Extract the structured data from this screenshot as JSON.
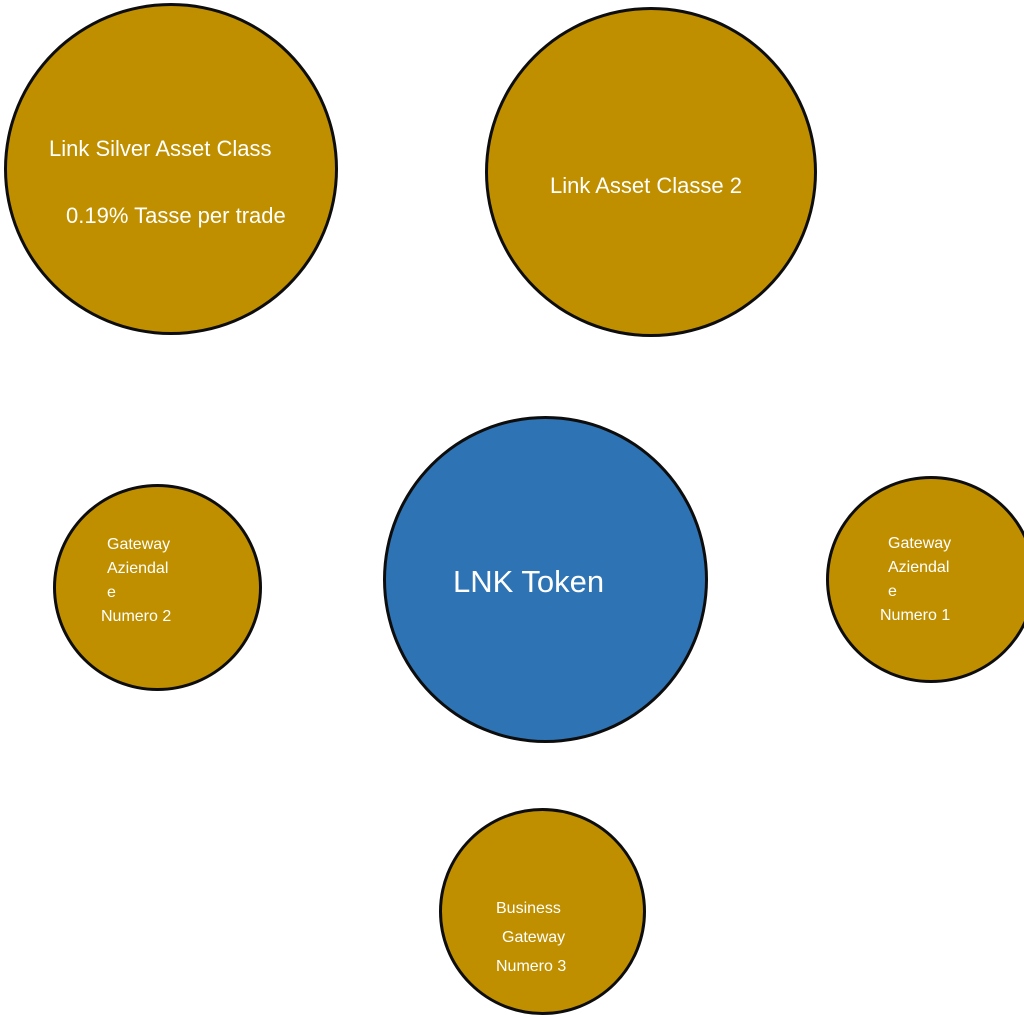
{
  "colors": {
    "asset_node_fill": "#bf8f00",
    "token_node_fill": "#2e74b5",
    "node_outline": "#0d0d0d",
    "label_text": "#ffffff",
    "background": "#ffffff"
  },
  "nodes": {
    "silver_asset_class": {
      "line1": "Link Silver Asset Class",
      "line2": "0.19% Tasse per trade"
    },
    "asset_class_2": {
      "line1": "Link Asset Classe 2"
    },
    "lnk_token": {
      "line1": "LNK Token"
    },
    "gateway_2": {
      "line1": "Gateway",
      "line2": "Aziendal",
      "line3": "e",
      "line4": "Numero 2"
    },
    "gateway_1": {
      "line1": "Gateway",
      "line2": "Aziendal",
      "line3": "e",
      "line4": "Numero 1"
    },
    "gateway_3": {
      "line1": "Business",
      "line2": "Gateway",
      "line3": "Numero 3"
    }
  }
}
